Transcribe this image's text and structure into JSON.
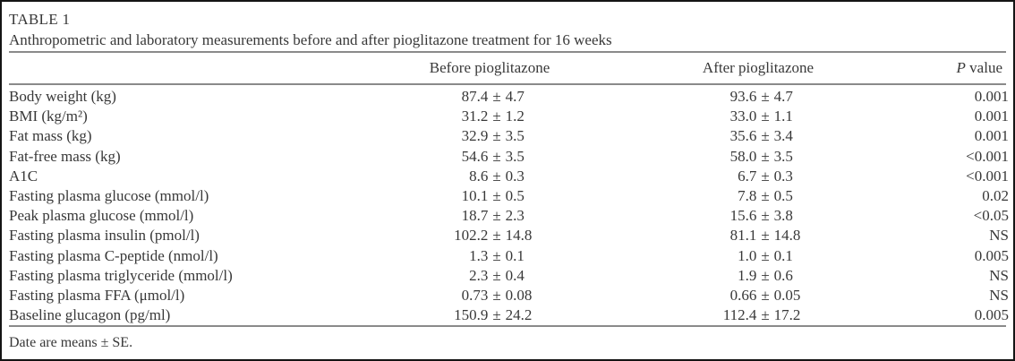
{
  "table": {
    "label": "TABLE 1",
    "caption": "Anthropometric and laboratory measurements before and after pioglitazone treatment for 16 weeks",
    "header": {
      "before": "Before pioglitazone",
      "after": "After pioglitazone",
      "p_italic": "P",
      "p_rest": " value"
    },
    "pm": "±",
    "rows": [
      {
        "name": "Body weight (kg)",
        "before_mean": "87.4",
        "before_se": "4.7",
        "after_mean": "93.6",
        "after_se": "4.7",
        "p": "0.001"
      },
      {
        "name": "BMI (kg/m²)",
        "before_mean": "31.2",
        "before_se": "1.2",
        "after_mean": "33.0",
        "after_se": "1.1",
        "p": "0.001"
      },
      {
        "name": "Fat mass (kg)",
        "before_mean": "32.9",
        "before_se": "3.5",
        "after_mean": "35.6",
        "after_se": "3.4",
        "p": "0.001"
      },
      {
        "name": "Fat-free mass (kg)",
        "before_mean": "54.6",
        "before_se": "3.5",
        "after_mean": "58.0",
        "after_se": "3.5",
        "p": "<0.001"
      },
      {
        "name": "A1C",
        "before_mean": "8.6",
        "before_se": "0.3",
        "after_mean": "6.7",
        "after_se": "0.3",
        "p": "<0.001"
      },
      {
        "name": "Fasting plasma glucose (mmol/l)",
        "before_mean": "10.1",
        "before_se": "0.5",
        "after_mean": "7.8",
        "after_se": "0.5",
        "p": "0.02"
      },
      {
        "name": "Peak plasma glucose (mmol/l)",
        "before_mean": "18.7",
        "before_se": "2.3",
        "after_mean": "15.6",
        "after_se": "3.8",
        "p": "<0.05"
      },
      {
        "name": "Fasting plasma insulin (pmol/l)",
        "before_mean": "102.2",
        "before_se": "14.8",
        "after_mean": "81.1",
        "after_se": "14.8",
        "p": "NS"
      },
      {
        "name": "Fasting plasma C-peptide (nmol/l)",
        "before_mean": "1.3",
        "before_se": "0.1",
        "after_mean": "1.0",
        "after_se": "0.1",
        "p": "0.005"
      },
      {
        "name": "Fasting plasma triglyceride (mmol/l)",
        "before_mean": "2.3",
        "before_se": "0.4",
        "after_mean": "1.9",
        "after_se": "0.6",
        "p": "NS"
      },
      {
        "name": "Fasting plasma FFA (μmol/l)",
        "before_mean": "0.73",
        "before_se": "0.08",
        "after_mean": "0.66",
        "after_se": "0.05",
        "p": "NS"
      },
      {
        "name": "Baseline glucagon (pg/ml)",
        "before_mean": "150.9",
        "before_se": "24.2",
        "after_mean": "112.4",
        "after_se": "17.2",
        "p": "0.005"
      }
    ],
    "footnote": "Date are means ± SE."
  },
  "colors": {
    "text": "#383838",
    "rule": "#8a8a8a",
    "border": "#141414",
    "background": "#ffffff"
  }
}
